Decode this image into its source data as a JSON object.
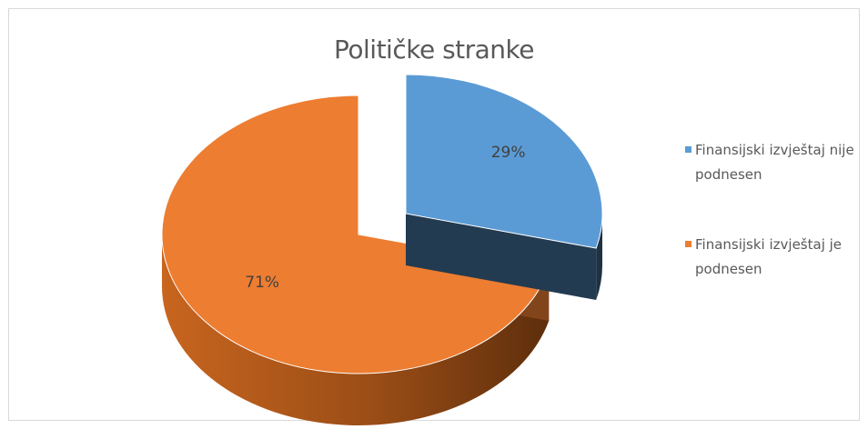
{
  "chart_data": {
    "type": "pie",
    "title": "Političke stranke",
    "slices": [
      {
        "label": "Finansijski izvještaj nije podnesen",
        "value": 29,
        "data_label": "29%",
        "color": "#5b9bd5",
        "exploded": true
      },
      {
        "label": "Finansijski izvještaj je podnesen",
        "value": 71,
        "data_label": "71%",
        "color": "#ed7d31",
        "exploded": false
      }
    ],
    "legend_position": "right",
    "style": "3d-exploded"
  }
}
